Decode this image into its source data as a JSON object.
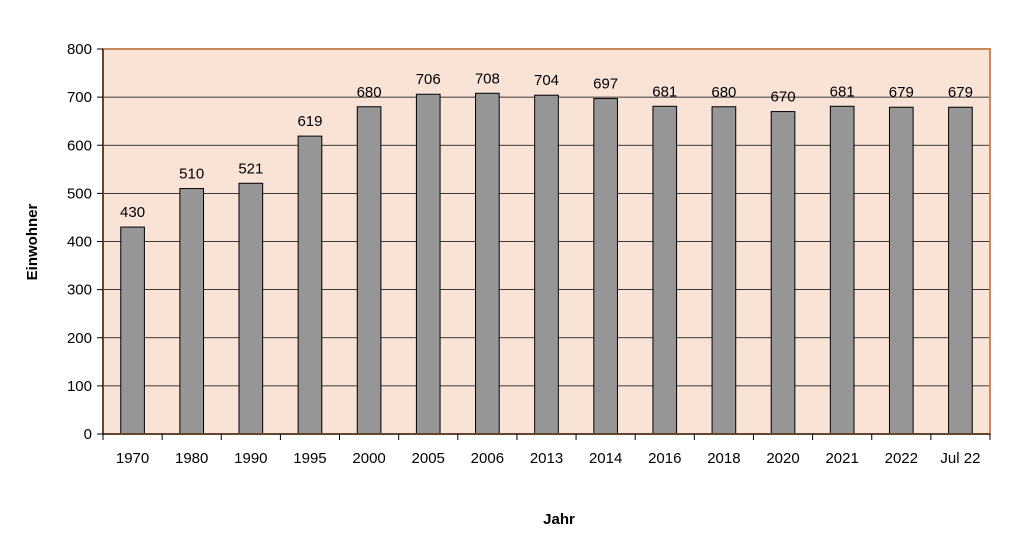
{
  "chart_data": {
    "type": "bar",
    "title": "",
    "xlabel": "Jahr",
    "ylabel": "Einwohner",
    "categories": [
      "1970",
      "1980",
      "1990",
      "1995",
      "2000",
      "2005",
      "2006",
      "2013",
      "2014",
      "2016",
      "2018",
      "2020",
      "2021",
      "2022",
      "Jul 22"
    ],
    "values": [
      430,
      510,
      521,
      619,
      680,
      706,
      708,
      704,
      697,
      681,
      680,
      670,
      681,
      679,
      679
    ],
    "ylim": [
      0,
      800
    ],
    "yticks": [
      0,
      100,
      200,
      300,
      400,
      500,
      600,
      700,
      800
    ],
    "grid": true,
    "legend": "none",
    "colors": {
      "plot_background": "#F8E3D6",
      "plot_border": "#C98A5A",
      "bar_fill": "#969696",
      "bar_stroke": "#000000",
      "gridline": "#000000"
    }
  }
}
